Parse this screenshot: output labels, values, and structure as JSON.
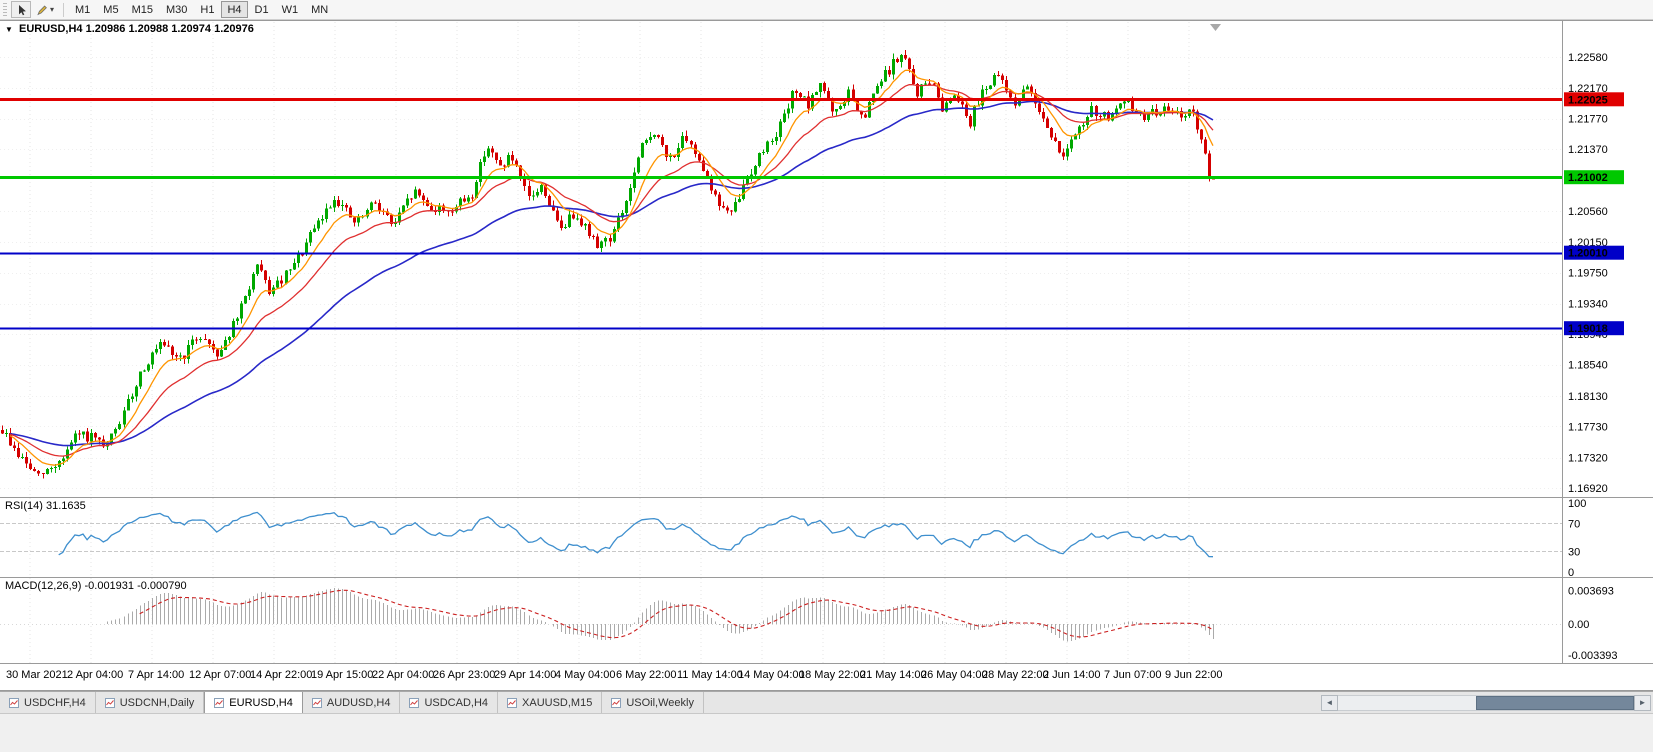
{
  "icons": {
    "caret_down": "▾",
    "header_marker": "▼",
    "scroll_left": "◄",
    "scroll_right": "►"
  },
  "colors": {
    "bull": "#00a800",
    "bear": "#d40000",
    "ma_fast": "#ff9500",
    "ma_mid": "#e03030",
    "ma_slow": "#2828c8",
    "rsi_line": "#3e8fce",
    "macd_hist": "#aaaaaa",
    "macd_signal": "#cc2020",
    "grid": "#e6e6e6"
  },
  "toolbar": {
    "timeframes": [
      "M1",
      "M5",
      "M15",
      "M30",
      "H1",
      "H4",
      "D1",
      "W1",
      "MN"
    ],
    "active_timeframe": "H4"
  },
  "chart": {
    "header": {
      "symbol_period": "EURUSD,H4",
      "ohlc": "1.20986 1.20988 1.20974 1.20976"
    },
    "price_axis_ticks": [
      "1.22580",
      "1.22170",
      "1.21770",
      "1.21370",
      "1.20560",
      "1.20150",
      "1.19750",
      "1.19340",
      "1.18940",
      "1.18540",
      "1.18130",
      "1.17730",
      "1.17320",
      "1.16920"
    ],
    "time_axis_labels": [
      "30 Mar 2021",
      "2 Apr 04:00",
      "7 Apr 14:00",
      "12 Apr 07:00",
      "14 Apr 22:00",
      "19 Apr 15:00",
      "22 Apr 04:00",
      "26 Apr 23:00",
      "29 Apr 14:00",
      "4 May 04:00",
      "6 May 22:00",
      "11 May 14:00",
      "14 May 04:00",
      "18 May 22:00",
      "21 May 14:00",
      "26 May 04:00",
      "28 May 22:00",
      "2 Jun 14:00",
      "7 Jun 07:00",
      "9 Jun 22:00"
    ],
    "hlines": [
      {
        "price": 1.22025,
        "label": "1.22025",
        "color": "#e00000",
        "width": 3
      },
      {
        "price": 1.21002,
        "label": "1.21002",
        "color": "#00c800",
        "width": 3
      },
      {
        "price": 1.2001,
        "label": "1.20010",
        "color": "#0000c8",
        "width": 2
      },
      {
        "price": 1.19018,
        "label": "1.19018",
        "color": "#0000c8",
        "width": 2
      }
    ]
  },
  "rsi": {
    "label": "RSI(14)",
    "value": "31.1635",
    "axis_ticks": [
      "100",
      "70",
      "30",
      "0"
    ],
    "levels": [
      70,
      30
    ]
  },
  "macd": {
    "label": "MACD(12,26,9)",
    "values": "-0.001931 -0.000790",
    "axis_ticks": [
      "0.003693",
      "0.00",
      "-0.003393"
    ]
  },
  "tabs": [
    {
      "label": "USDCHF,H4",
      "active": false
    },
    {
      "label": "USDCNH,Daily",
      "active": false
    },
    {
      "label": "EURUSD,H4",
      "active": true
    },
    {
      "label": "AUDUSD,H4",
      "active": false
    },
    {
      "label": "USDCAD,H4",
      "active": false
    },
    {
      "label": "XAUUSD,M15",
      "active": false
    },
    {
      "label": "USOil,Weekly",
      "active": false
    }
  ],
  "chart_data": {
    "type": "candlestick",
    "symbol": "EURUSD",
    "timeframe": "H4",
    "last_ohlc": {
      "open": 1.20986,
      "high": 1.20988,
      "low": 1.20974,
      "close": 1.20976
    },
    "bars": 300,
    "wiggle": 0.0007,
    "price_anchors": [
      [
        0,
        1.1768
      ],
      [
        0.012,
        1.1738
      ],
      [
        0.03,
        1.1706
      ],
      [
        0.048,
        1.1728
      ],
      [
        0.062,
        1.1762
      ],
      [
        0.075,
        1.1757
      ],
      [
        0.085,
        1.1742
      ],
      [
        0.1,
        1.1788
      ],
      [
        0.115,
        1.1848
      ],
      [
        0.13,
        1.1878
      ],
      [
        0.148,
        1.1862
      ],
      [
        0.163,
        1.1894
      ],
      [
        0.178,
        1.1868
      ],
      [
        0.195,
        1.1918
      ],
      [
        0.21,
        1.1983
      ],
      [
        0.222,
        1.1948
      ],
      [
        0.24,
        1.1982
      ],
      [
        0.258,
        1.2032
      ],
      [
        0.275,
        1.2075
      ],
      [
        0.292,
        1.2038
      ],
      [
        0.308,
        1.2068
      ],
      [
        0.323,
        1.2036
      ],
      [
        0.34,
        1.2082
      ],
      [
        0.356,
        1.2058
      ],
      [
        0.372,
        1.2058
      ],
      [
        0.388,
        1.2078
      ],
      [
        0.4,
        1.2145
      ],
      [
        0.41,
        1.2112
      ],
      [
        0.42,
        1.2128
      ],
      [
        0.434,
        1.2072
      ],
      [
        0.446,
        1.2088
      ],
      [
        0.46,
        1.2032
      ],
      [
        0.474,
        1.2055
      ],
      [
        0.49,
        1.2012
      ],
      [
        0.503,
        1.2022
      ],
      [
        0.515,
        1.2068
      ],
      [
        0.528,
        1.2138
      ],
      [
        0.538,
        1.2162
      ],
      [
        0.55,
        1.2122
      ],
      [
        0.562,
        1.2148
      ],
      [
        0.575,
        1.2128
      ],
      [
        0.59,
        1.2068
      ],
      [
        0.602,
        1.205
      ],
      [
        0.616,
        1.2102
      ],
      [
        0.63,
        1.214
      ],
      [
        0.644,
        1.2172
      ],
      [
        0.655,
        1.2218
      ],
      [
        0.666,
        1.219
      ],
      [
        0.676,
        1.2228
      ],
      [
        0.687,
        1.2178
      ],
      [
        0.699,
        1.2212
      ],
      [
        0.71,
        1.2172
      ],
      [
        0.722,
        1.2218
      ],
      [
        0.735,
        1.2248
      ],
      [
        0.744,
        1.2262
      ],
      [
        0.755,
        1.221
      ],
      [
        0.766,
        1.2228
      ],
      [
        0.776,
        1.2192
      ],
      [
        0.787,
        1.2214
      ],
      [
        0.799,
        1.2172
      ],
      [
        0.81,
        1.2218
      ],
      [
        0.824,
        1.2232
      ],
      [
        0.835,
        1.2198
      ],
      [
        0.848,
        1.2218
      ],
      [
        0.86,
        1.2178
      ],
      [
        0.874,
        1.2128
      ],
      [
        0.886,
        1.2152
      ],
      [
        0.9,
        1.2188
      ],
      [
        0.914,
        1.2178
      ],
      [
        0.928,
        1.2198
      ],
      [
        0.942,
        1.2178
      ],
      [
        0.956,
        1.219
      ],
      [
        0.97,
        1.2182
      ],
      [
        0.982,
        1.2188
      ],
      [
        0.99,
        1.2148
      ],
      [
        0.996,
        1.2106
      ],
      [
        1,
        1.20976
      ]
    ],
    "indicators": [
      {
        "name": "RSI",
        "period": 14,
        "last": 31.1635
      },
      {
        "name": "MACD",
        "fast": 12,
        "slow": 26,
        "signal": 9,
        "last_main": -0.001931,
        "last_signal": -0.00079
      },
      {
        "name": "MA-fast-orange"
      },
      {
        "name": "MA-mid-red"
      },
      {
        "name": "MA-slow-blue"
      }
    ]
  }
}
